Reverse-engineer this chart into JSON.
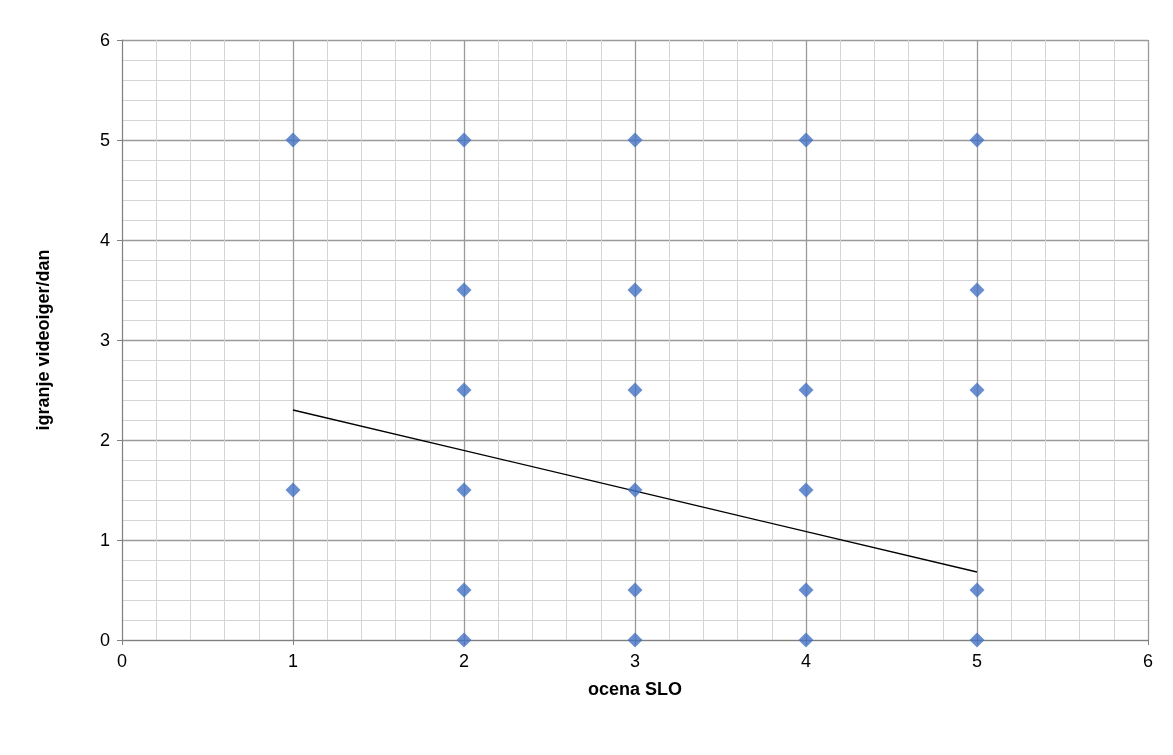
{
  "chart_data": {
    "type": "scatter",
    "xlabel": "ocena SLO",
    "ylabel": "igranje videoiger/dan",
    "xlim": [
      0,
      6
    ],
    "xticks": [
      0,
      1,
      2,
      3,
      4,
      5,
      6
    ],
    "ylim": [
      0,
      6
    ],
    "yticks": [
      0,
      1,
      2,
      3,
      4,
      5,
      6
    ],
    "grid": true,
    "series": [
      {
        "color": "#4472c4",
        "marker": "diamond",
        "x": [
          1,
          1,
          2,
          2,
          2,
          2,
          2,
          2,
          3,
          3,
          3,
          3,
          3,
          3,
          4,
          4,
          4,
          4,
          4,
          5,
          5,
          5,
          5,
          5
        ],
        "values": [
          5,
          1.5,
          5,
          3.5,
          2.5,
          1.5,
          0.5,
          0,
          5,
          3.5,
          2.5,
          1.5,
          0.5,
          0,
          5,
          2.5,
          1.5,
          0.5,
          0,
          5,
          3.5,
          2.5,
          0.5,
          0
        ]
      },
      {
        "type": "line",
        "color": "#000000",
        "marker": "none",
        "x": [
          1,
          5
        ],
        "values": [
          2.3,
          0.68
        ]
      }
    ]
  }
}
